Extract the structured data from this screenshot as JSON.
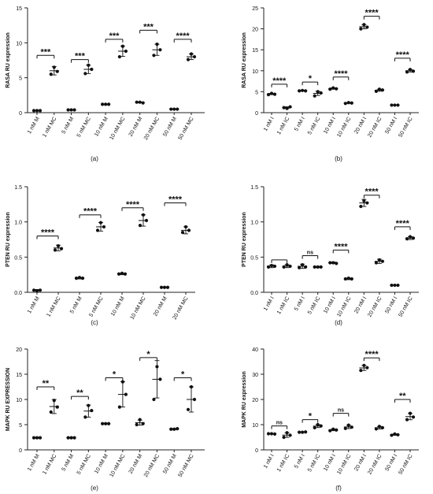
{
  "chart_data": [
    {
      "type": "scatter",
      "panel_label": "(a)",
      "ylabel": "RASA RU expression",
      "yticks": [
        "0",
        "5",
        "10",
        "15"
      ],
      "ylim": [
        0,
        15
      ],
      "categories": [
        "1 nM M",
        "1 nM MC",
        "5 nM M",
        "5 nM MC",
        "10 nM M",
        "10 nM MC",
        "20 nM M",
        "20 nM MC",
        "50 nM M",
        "50 nM MC"
      ],
      "points": [
        [
          0.3,
          0.3,
          0.3
        ],
        [
          5.5,
          6.5,
          5.9
        ],
        [
          0.4,
          0.4,
          0.4
        ],
        [
          5.6,
          6.8,
          6.2
        ],
        [
          1.2,
          1.2,
          1.2
        ],
        [
          8.0,
          9.5,
          8.8
        ],
        [
          1.5,
          1.5,
          1.4
        ],
        [
          8.2,
          9.8,
          9.0
        ],
        [
          0.5,
          0.5,
          0.5
        ],
        [
          7.6,
          8.4,
          8.0
        ]
      ],
      "means": [
        0.3,
        6.0,
        0.4,
        6.2,
        1.2,
        8.8,
        1.45,
        9.0,
        0.5,
        8.0
      ],
      "errors": [
        0.05,
        0.6,
        0.05,
        0.6,
        0.05,
        0.75,
        0.05,
        0.8,
        0.05,
        0.4
      ],
      "comparisons": [
        {
          "from": 0,
          "to": 1,
          "y": 8.2,
          "label": "***"
        },
        {
          "from": 2,
          "to": 3,
          "y": 7.6,
          "label": "***"
        },
        {
          "from": 4,
          "to": 5,
          "y": 10.5,
          "label": "***"
        },
        {
          "from": 6,
          "to": 7,
          "y": 11.8,
          "label": "***"
        },
        {
          "from": 8,
          "to": 9,
          "y": 10.5,
          "label": "****"
        }
      ]
    },
    {
      "type": "scatter",
      "panel_label": "(b)",
      "ylabel": "RASA RU expression",
      "yticks": [
        "0",
        "5",
        "10",
        "15",
        "20",
        "25"
      ],
      "ylim": [
        0,
        25
      ],
      "categories": [
        "1 nM I",
        "1 nM IC",
        "5 nM I",
        "5 nM IC",
        "10 nM I",
        "10 nM IC",
        "20 nM I",
        "20 nM IC",
        "50 nM I",
        "50 nM IC"
      ],
      "points": [
        [
          4.3,
          4.6,
          4.4
        ],
        [
          1.2,
          1.0,
          1.4
        ],
        [
          5.2,
          5.3,
          5.2
        ],
        [
          4.0,
          5.0,
          4.7
        ],
        [
          5.6,
          5.9,
          5.7
        ],
        [
          2.2,
          2.4,
          2.3
        ],
        [
          20.0,
          21.0,
          20.4
        ],
        [
          5.1,
          5.6,
          5.4
        ],
        [
          1.8,
          1.8,
          1.8
        ],
        [
          9.7,
          10.3,
          9.9
        ]
      ],
      "means": [
        4.45,
        1.2,
        5.25,
        4.6,
        5.75,
        2.3,
        20.5,
        5.35,
        1.8,
        10.0
      ],
      "errors": [
        0.15,
        0.2,
        0.1,
        0.5,
        0.15,
        0.1,
        0.5,
        0.25,
        0.05,
        0.3
      ],
      "comparisons": [
        {
          "from": 0,
          "to": 1,
          "y": 6.8,
          "label": "****"
        },
        {
          "from": 2,
          "to": 3,
          "y": 7.3,
          "label": "*"
        },
        {
          "from": 4,
          "to": 5,
          "y": 8.5,
          "label": "****"
        },
        {
          "from": 6,
          "to": 7,
          "y": 23.0,
          "label": "****"
        },
        {
          "from": 8,
          "to": 9,
          "y": 13.0,
          "label": "****"
        }
      ]
    },
    {
      "type": "scatter",
      "panel_label": "(c)",
      "ylabel": "PTEN RU expression",
      "yticks": [
        "0.0",
        "0.5",
        "1.0",
        "1.5"
      ],
      "ylim": [
        0,
        1.5
      ],
      "categories": [
        "1 nM M",
        "1 nM MC",
        "5 nM M",
        "5 nM MC",
        "10 nM M",
        "10 nM MC",
        "20 nM M",
        "20 nM MC"
      ],
      "points": [
        [
          0.03,
          0.02,
          0.03
        ],
        [
          0.6,
          0.66,
          0.62
        ],
        [
          0.2,
          0.21,
          0.2
        ],
        [
          0.88,
          0.99,
          0.93
        ],
        [
          0.26,
          0.27,
          0.26
        ],
        [
          0.95,
          1.1,
          1.02
        ],
        [
          0.07,
          0.07,
          0.07
        ],
        [
          0.85,
          0.93,
          0.88
        ]
      ],
      "means": [
        0.03,
        0.63,
        0.2,
        0.93,
        0.26,
        1.02,
        0.07,
        0.88
      ],
      "errors": [
        0.01,
        0.04,
        0.01,
        0.06,
        0.01,
        0.08,
        0.005,
        0.05
      ],
      "comparisons": [
        {
          "from": 0,
          "to": 1,
          "y": 0.8,
          "label": "****"
        },
        {
          "from": 2,
          "to": 3,
          "y": 1.1,
          "label": "****"
        },
        {
          "from": 4,
          "to": 5,
          "y": 1.2,
          "label": "****"
        },
        {
          "from": 6,
          "to": 7,
          "y": 1.27,
          "label": "****"
        }
      ]
    },
    {
      "type": "scatter",
      "panel_label": "(d)",
      "ylabel": "PTEN RU expression",
      "yticks": [
        "0.0",
        "0.5",
        "1.0",
        "1.5"
      ],
      "ylim": [
        0,
        1.5
      ],
      "categories": [
        "1 nM I",
        "1 nM IC",
        "5 nM I",
        "5 nM IC",
        "10 nM I",
        "10 nM IC",
        "20 nM I",
        "20 nM IC",
        "50 nM I",
        "50 nM IC"
      ],
      "points": [
        [
          0.36,
          0.38,
          0.37
        ],
        [
          0.36,
          0.39,
          0.37
        ],
        [
          0.35,
          0.39,
          0.36
        ],
        [
          0.36,
          0.36,
          0.36
        ],
        [
          0.42,
          0.42,
          0.41
        ],
        [
          0.19,
          0.2,
          0.19
        ],
        [
          1.22,
          1.3,
          1.27
        ],
        [
          0.42,
          0.46,
          0.44
        ],
        [
          0.1,
          0.1,
          0.1
        ],
        [
          0.76,
          0.79,
          0.77
        ]
      ],
      "means": [
        0.37,
        0.37,
        0.37,
        0.36,
        0.42,
        0.19,
        1.27,
        0.44,
        0.1,
        0.77
      ],
      "errors": [
        0.02,
        0.02,
        0.03,
        0.01,
        0.01,
        0.01,
        0.05,
        0.03,
        0.005,
        0.02
      ],
      "comparisons": [
        {
          "from": 0,
          "to": 1,
          "y": 0.46,
          "label": ""
        },
        {
          "from": 2,
          "to": 3,
          "y": 0.52,
          "label": "ns"
        },
        {
          "from": 4,
          "to": 5,
          "y": 0.6,
          "label": "****"
        },
        {
          "from": 6,
          "to": 7,
          "y": 1.38,
          "label": "****"
        },
        {
          "from": 8,
          "to": 9,
          "y": 0.93,
          "label": "****"
        }
      ]
    },
    {
      "type": "scatter",
      "panel_label": "(e)",
      "ylabel": "MAPK RU EXPRESSION",
      "yticks": [
        "0",
        "5",
        "10",
        "15",
        "20"
      ],
      "ylim": [
        0,
        20
      ],
      "categories": [
        "1 nM M",
        "1 nM MC",
        "5 nM M",
        "5 nM MC",
        "10 nM M",
        "10 nM MC",
        "20 nM M",
        "20 nM MC",
        "50 nM M",
        "50 nM MC"
      ],
      "points": [
        [
          2.4,
          2.4,
          2.4
        ],
        [
          7.5,
          9.8,
          8.5
        ],
        [
          2.4,
          2.4,
          2.4
        ],
        [
          6.5,
          8.8,
          7.8
        ],
        [
          5.2,
          5.2,
          5.2
        ],
        [
          8.5,
          13.5,
          11.0
        ],
        [
          5.0,
          6.0,
          5.2
        ],
        [
          10.0,
          16.5,
          14.0
        ],
        [
          4.1,
          4.1,
          4.2
        ],
        [
          8.0,
          12.5,
          10.0
        ]
      ],
      "means": [
        2.4,
        8.6,
        2.4,
        7.7,
        5.2,
        11.0,
        5.4,
        14.0,
        4.13,
        10.0
      ],
      "errors": [
        0.1,
        1.4,
        0.1,
        1.2,
        0.1,
        2.5,
        0.5,
        3.7,
        0.1,
        2.5
      ],
      "comparisons": [
        {
          "from": 0,
          "to": 1,
          "y": 12.5,
          "label": "**"
        },
        {
          "from": 2,
          "to": 3,
          "y": 10.6,
          "label": "**"
        },
        {
          "from": 4,
          "to": 5,
          "y": 14.3,
          "label": "*"
        },
        {
          "from": 6,
          "to": 7,
          "y": 18.3,
          "label": "*"
        },
        {
          "from": 8,
          "to": 9,
          "y": 14.3,
          "label": "*"
        }
      ]
    },
    {
      "type": "scatter",
      "panel_label": "(f)",
      "ylabel": "MAPK RU expression",
      "yticks": [
        "0",
        "10",
        "20",
        "30",
        "40"
      ],
      "ylim": [
        0,
        40
      ],
      "categories": [
        "1 nM I",
        "1 nM IC",
        "5 nM I",
        "5 nM IC",
        "10 nM I",
        "10 nM IC",
        "20 nM I",
        "20 nM IC",
        "50 nM I",
        "50 nM IC"
      ],
      "points": [
        [
          6.4,
          6.4,
          6.3
        ],
        [
          5.0,
          6.8,
          5.8
        ],
        [
          7.0,
          7.0,
          7.1
        ],
        [
          8.8,
          10.0,
          9.5
        ],
        [
          7.6,
          8.2,
          7.9
        ],
        [
          8.5,
          9.8,
          9.0
        ],
        [
          31.5,
          33.5,
          32.6
        ],
        [
          8.3,
          9.3,
          8.8
        ],
        [
          5.8,
          6.3,
          6.0
        ],
        [
          12.0,
          14.5,
          13.0
        ]
      ],
      "means": [
        6.37,
        5.87,
        7.03,
        9.43,
        7.9,
        9.1,
        32.5,
        8.8,
        6.03,
        13.2
      ],
      "errors": [
        0.05,
        0.9,
        0.05,
        0.6,
        0.3,
        0.65,
        1.0,
        0.5,
        0.25,
        1.25
      ],
      "comparisons": [
        {
          "from": 0,
          "to": 1,
          "y": 9.5,
          "label": "ns"
        },
        {
          "from": 2,
          "to": 3,
          "y": 12.0,
          "label": "*"
        },
        {
          "from": 4,
          "to": 5,
          "y": 14.5,
          "label": "ns"
        },
        {
          "from": 6,
          "to": 7,
          "y": 36.5,
          "label": "****"
        },
        {
          "from": 8,
          "to": 9,
          "y": 20.0,
          "label": "**"
        }
      ]
    }
  ]
}
